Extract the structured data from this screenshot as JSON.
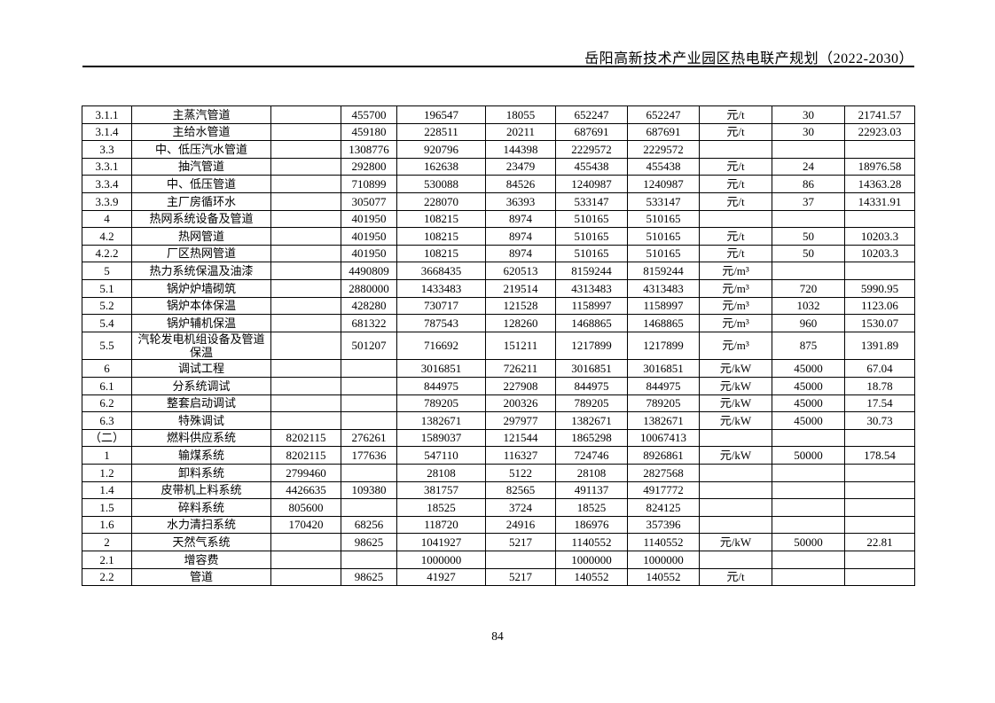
{
  "header": {
    "title": "岳阳高新技术产业园区热电联产规划（2022-2030）"
  },
  "table": {
    "rows": [
      [
        "3.1.1",
        "主蒸汽管道",
        "",
        "455700",
        "196547",
        "18055",
        "652247",
        "652247",
        "元/t",
        "30",
        "21741.57"
      ],
      [
        "3.1.4",
        "主给水管道",
        "",
        "459180",
        "228511",
        "20211",
        "687691",
        "687691",
        "元/t",
        "30",
        "22923.03"
      ],
      [
        "3.3",
        "中、低压汽水管道",
        "",
        "1308776",
        "920796",
        "144398",
        "2229572",
        "2229572",
        "",
        "",
        ""
      ],
      [
        "3.3.1",
        "抽汽管道",
        "",
        "292800",
        "162638",
        "23479",
        "455438",
        "455438",
        "元/t",
        "24",
        "18976.58"
      ],
      [
        "3.3.4",
        "中、低压管道",
        "",
        "710899",
        "530088",
        "84526",
        "1240987",
        "1240987",
        "元/t",
        "86",
        "14363.28"
      ],
      [
        "3.3.9",
        "主厂房循环水",
        "",
        "305077",
        "228070",
        "36393",
        "533147",
        "533147",
        "元/t",
        "37",
        "14331.91"
      ],
      [
        "4",
        "热网系统设备及管道",
        "",
        "401950",
        "108215",
        "8974",
        "510165",
        "510165",
        "",
        "",
        ""
      ],
      [
        "4.2",
        "热网管道",
        "",
        "401950",
        "108215",
        "8974",
        "510165",
        "510165",
        "元/t",
        "50",
        "10203.3"
      ],
      [
        "4.2.2",
        "厂区热网管道",
        "",
        "401950",
        "108215",
        "8974",
        "510165",
        "510165",
        "元/t",
        "50",
        "10203.3"
      ],
      [
        "5",
        "热力系统保温及油漆",
        "",
        "4490809",
        "3668435",
        "620513",
        "8159244",
        "8159244",
        "元/m³",
        "",
        ""
      ],
      [
        "5.1",
        "锅炉炉墙砌筑",
        "",
        "2880000",
        "1433483",
        "219514",
        "4313483",
        "4313483",
        "元/m³",
        "720",
        "5990.95"
      ],
      [
        "5.2",
        "锅炉本体保温",
        "",
        "428280",
        "730717",
        "121528",
        "1158997",
        "1158997",
        "元/m³",
        "1032",
        "1123.06"
      ],
      [
        "5.4",
        "锅炉辅机保温",
        "",
        "681322",
        "787543",
        "128260",
        "1468865",
        "1468865",
        "元/m³",
        "960",
        "1530.07"
      ],
      [
        "5.5",
        "汽轮发电机组设备及管道保温",
        "",
        "501207",
        "716692",
        "151211",
        "1217899",
        "1217899",
        "元/m³",
        "875",
        "1391.89"
      ],
      [
        "6",
        "调试工程",
        "",
        "",
        "3016851",
        "726211",
        "3016851",
        "3016851",
        "元/kW",
        "45000",
        "67.04"
      ],
      [
        "6.1",
        "分系统调试",
        "",
        "",
        "844975",
        "227908",
        "844975",
        "844975",
        "元/kW",
        "45000",
        "18.78"
      ],
      [
        "6.2",
        "整套启动调试",
        "",
        "",
        "789205",
        "200326",
        "789205",
        "789205",
        "元/kW",
        "45000",
        "17.54"
      ],
      [
        "6.3",
        "特殊调试",
        "",
        "",
        "1382671",
        "297977",
        "1382671",
        "1382671",
        "元/kW",
        "45000",
        "30.73"
      ],
      [
        "（二）",
        "燃料供应系统",
        "8202115",
        "276261",
        "1589037",
        "121544",
        "1865298",
        "10067413",
        "",
        "",
        ""
      ],
      [
        "1",
        "输煤系统",
        "8202115",
        "177636",
        "547110",
        "116327",
        "724746",
        "8926861",
        "元/kW",
        "50000",
        "178.54"
      ],
      [
        "1.2",
        "卸料系统",
        "2799460",
        "",
        "28108",
        "5122",
        "28108",
        "2827568",
        "",
        "",
        ""
      ],
      [
        "1.4",
        "皮带机上料系统",
        "4426635",
        "109380",
        "381757",
        "82565",
        "491137",
        "4917772",
        "",
        "",
        ""
      ],
      [
        "1.5",
        "碎料系统",
        "805600",
        "",
        "18525",
        "3724",
        "18525",
        "824125",
        "",
        "",
        ""
      ],
      [
        "1.6",
        "水力清扫系统",
        "170420",
        "68256",
        "118720",
        "24916",
        "186976",
        "357396",
        "",
        "",
        ""
      ],
      [
        "2",
        "天然气系统",
        "",
        "98625",
        "1041927",
        "5217",
        "1140552",
        "1140552",
        "元/kW",
        "50000",
        "22.81"
      ],
      [
        "2.1",
        "增容费",
        "",
        "",
        "1000000",
        "",
        "1000000",
        "1000000",
        "",
        "",
        ""
      ],
      [
        "2.2",
        "管道",
        "",
        "98625",
        "41927",
        "5217",
        "140552",
        "140552",
        "元/t",
        "",
        ""
      ]
    ]
  },
  "footer": {
    "page_number": "84"
  }
}
